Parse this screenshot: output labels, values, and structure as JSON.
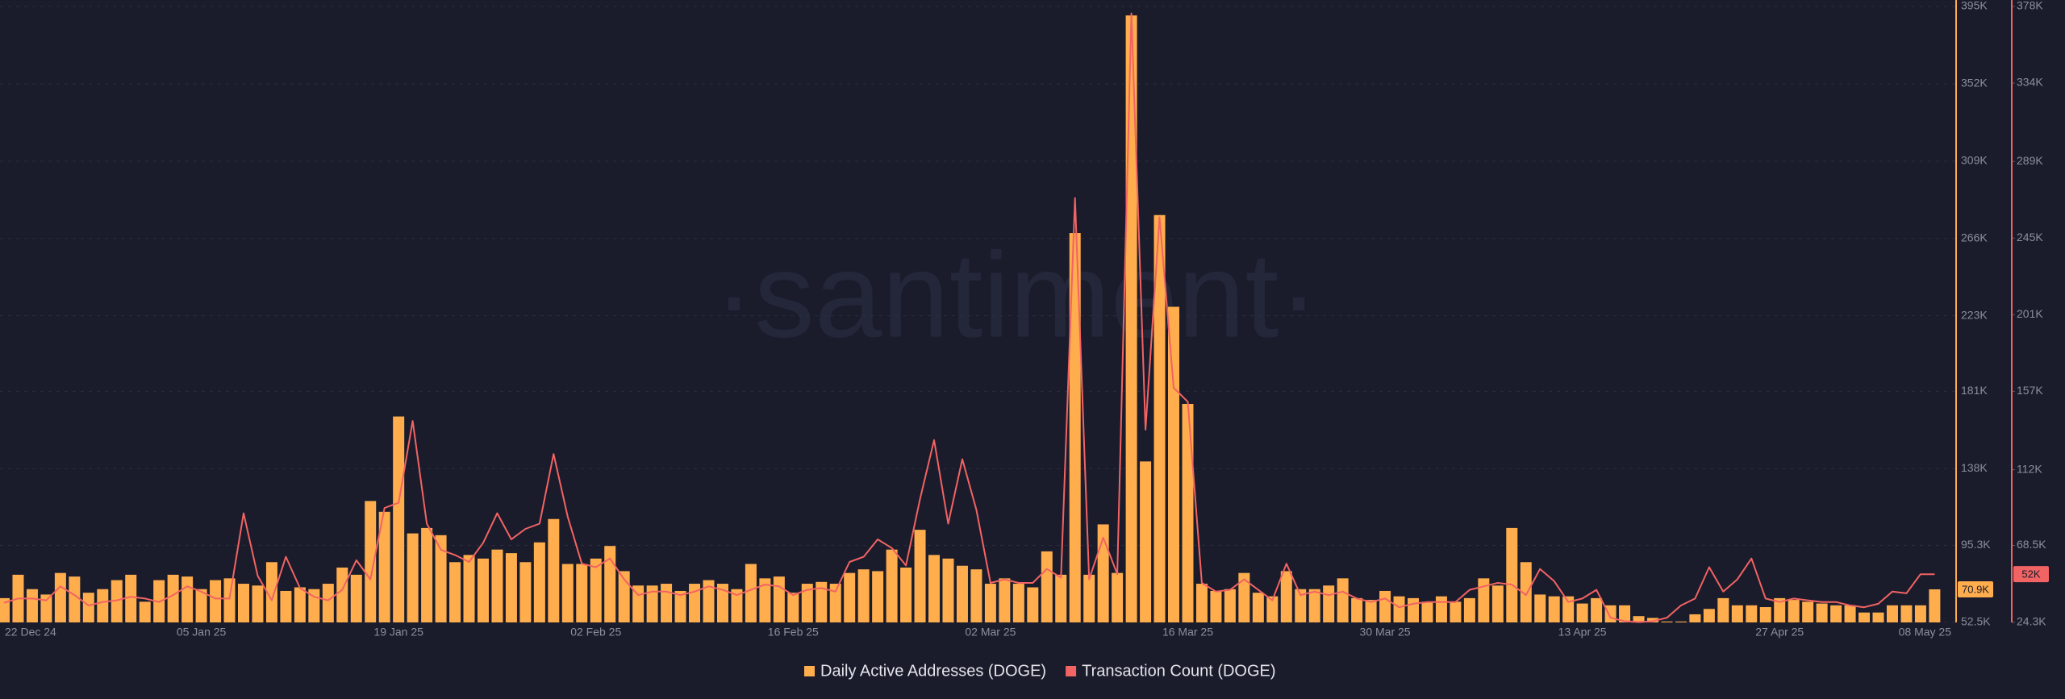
{
  "chart_data": {
    "type": "bar-line",
    "watermark": "·santiment·",
    "categories": [
      "22 Dec 24",
      null,
      null,
      null,
      null,
      null,
      null,
      null,
      null,
      null,
      null,
      null,
      null,
      null,
      "05 Jan 25",
      null,
      null,
      null,
      null,
      null,
      null,
      null,
      null,
      null,
      null,
      null,
      null,
      null,
      "19 Jan 25",
      null,
      null,
      null,
      null,
      null,
      null,
      null,
      null,
      null,
      null,
      null,
      null,
      null,
      "02 Feb 25",
      null,
      null,
      null,
      null,
      null,
      null,
      null,
      null,
      null,
      null,
      null,
      null,
      null,
      "16 Feb 25",
      null,
      null,
      null,
      null,
      null,
      null,
      null,
      null,
      null,
      null,
      null,
      null,
      null,
      "02 Mar 25",
      null,
      null,
      null,
      null,
      null,
      null,
      null,
      null,
      null,
      null,
      null,
      null,
      null,
      "16 Mar 25",
      null,
      null,
      null,
      null,
      null,
      null,
      null,
      null,
      null,
      null,
      null,
      null,
      null,
      "30 Mar 25",
      null,
      null,
      null,
      null,
      null,
      null,
      null,
      null,
      null,
      null,
      null,
      null,
      null,
      "13 Apr 25",
      null,
      null,
      null,
      null,
      null,
      null,
      null,
      null,
      null,
      null,
      null,
      null,
      null,
      "27 Apr 25",
      null,
      null,
      null,
      null,
      null,
      null,
      null,
      null,
      null,
      null,
      "08 May 25"
    ],
    "series": [
      {
        "name": "Daily Active Addresses (DOGE)",
        "type": "bar",
        "color": "#ffad4d",
        "axis": "y",
        "end_label": "70.9K",
        "values": [
          66,
          79,
          71,
          68,
          80,
          78,
          69,
          71,
          76,
          79,
          64,
          76,
          79,
          78,
          71,
          76,
          77,
          74,
          73,
          86,
          70,
          72,
          71,
          74,
          83,
          79,
          120,
          114,
          167,
          102,
          105,
          101,
          86,
          90,
          88,
          93,
          91,
          86,
          97,
          110,
          85,
          85,
          88,
          95,
          81,
          73,
          73,
          74,
          70,
          74,
          76,
          74,
          71,
          85,
          77,
          78,
          69,
          74,
          75,
          74,
          80,
          82,
          81,
          93,
          83,
          104,
          90,
          88,
          84,
          82,
          74,
          77,
          74,
          72,
          92,
          79,
          269,
          79,
          107,
          80,
          390,
          142,
          279,
          228,
          174,
          74,
          70,
          71,
          80,
          69,
          67,
          81,
          71,
          71,
          73,
          77,
          66,
          65,
          70,
          67,
          66,
          64,
          67,
          64,
          66,
          77,
          73,
          105,
          86,
          68,
          67,
          67,
          63,
          66,
          62,
          62,
          56,
          55,
          53,
          53,
          57,
          60,
          66,
          62,
          62,
          61,
          66,
          65,
          64,
          63,
          62,
          62,
          58,
          58,
          62,
          62,
          62,
          70.9
        ]
      },
      {
        "name": "Transaction Count (DOGE)",
        "type": "line",
        "color": "#f26363",
        "axis": "y2",
        "end_label": "52K",
        "values": [
          35.6,
          38,
          38,
          37,
          45,
          40,
          34,
          36,
          37,
          39,
          38,
          36,
          40,
          45,
          42,
          38,
          38,
          87,
          51,
          37,
          62,
          44,
          39,
          37,
          43,
          60,
          49,
          90,
          93,
          140,
          81,
          66,
          63,
          59,
          70,
          87,
          72,
          78,
          81,
          121,
          85,
          58,
          56,
          61,
          49,
          40,
          42,
          42,
          40,
          42,
          45,
          43,
          40,
          43,
          46,
          45,
          40,
          43,
          44,
          42,
          59,
          62,
          72,
          67,
          57,
          95,
          129,
          81,
          118,
          89,
          47,
          49,
          47,
          47,
          55,
          50,
          268,
          49,
          73,
          52,
          374,
          135,
          257,
          159,
          151,
          47,
          42,
          43,
          49,
          43,
          37,
          58,
          40,
          42,
          40,
          42,
          38,
          36,
          38,
          33,
          35,
          36,
          36,
          36,
          43,
          45,
          47,
          46,
          40,
          55,
          48,
          36,
          38,
          43,
          27,
          25,
          24.5,
          25,
          27,
          34,
          38,
          56,
          42,
          49,
          61,
          38,
          36,
          38,
          37,
          36,
          36,
          34,
          33,
          35,
          42,
          41,
          52,
          52
        ]
      }
    ],
    "ylim": [
      52.5,
      395
    ],
    "yticks": [
      {
        "value": 52.5,
        "label": "52.5K"
      },
      {
        "value": 95.3,
        "label": "95.3K"
      },
      {
        "value": 138,
        "label": "138K"
      },
      {
        "value": 181,
        "label": "181K"
      },
      {
        "value": 223,
        "label": "223K"
      },
      {
        "value": 266,
        "label": "266K"
      },
      {
        "value": 309,
        "label": "309K"
      },
      {
        "value": 352,
        "label": "352K"
      },
      {
        "value": 395,
        "label": "395K"
      }
    ],
    "y2lim": [
      24.3,
      378
    ],
    "y2ticks": [
      {
        "value": 24.3,
        "label": "24.3K"
      },
      {
        "value": 68.5,
        "label": "68.5K"
      },
      {
        "value": 112,
        "label": "112K"
      },
      {
        "value": 157,
        "label": "157K"
      },
      {
        "value": 201,
        "label": "201K"
      },
      {
        "value": 245,
        "label": "245K"
      },
      {
        "value": 289,
        "label": "289K"
      },
      {
        "value": 334,
        "label": "334K"
      },
      {
        "value": 378,
        "label": "378K"
      }
    ],
    "grid": true,
    "legend": "bottom"
  }
}
